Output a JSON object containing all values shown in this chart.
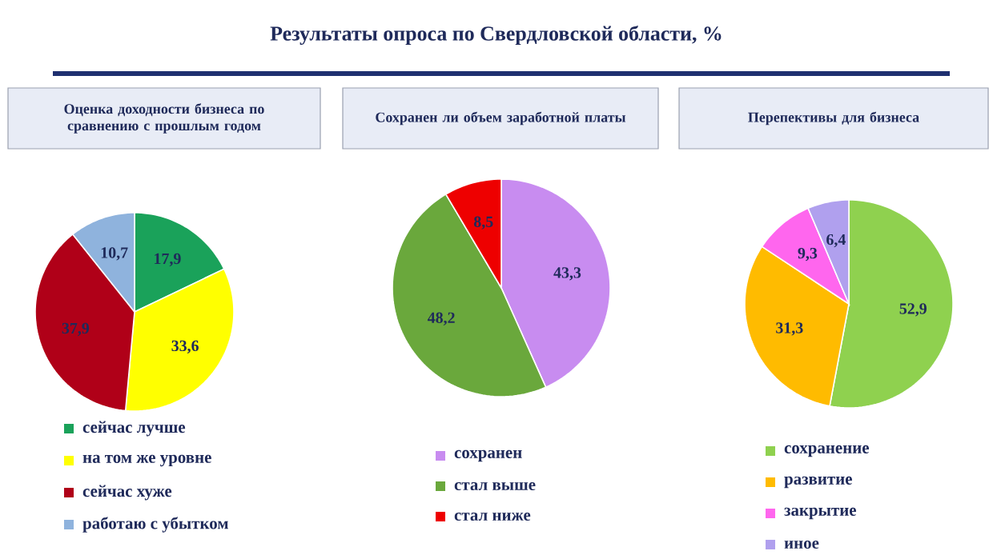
{
  "chart_data": [
    {
      "type": "pie",
      "subtitle": "Оценка доходности бизнеса по сравнению с прошлым годом",
      "categories": [
        "сейчас лучше",
        "на том же уровне",
        "сейчас хуже",
        "работаю с убытком"
      ],
      "values": [
        17.9,
        33.6,
        37.9,
        10.7
      ],
      "value_labels": [
        "17,9",
        "33,6",
        "37,9",
        "10,7"
      ],
      "colors": [
        "#1aa25a",
        "#ffff00",
        "#b00018",
        "#8fb3dd"
      ],
      "legend": "bottom"
    },
    {
      "type": "pie",
      "title": "Результаты опроса по Свердловской области, %",
      "subtitle": "Сохранен ли объем заработной платы",
      "categories": [
        "сохранен",
        "стал выше",
        "стал ниже"
      ],
      "values": [
        43.3,
        48.2,
        8.5
      ],
      "value_labels": [
        "43,3",
        "48,2",
        "8,5"
      ],
      "colors": [
        "#c88cf0",
        "#6aa83c",
        "#ee0000"
      ],
      "legend": "bottom"
    },
    {
      "type": "pie",
      "subtitle": "Перепективы для бизнеса",
      "categories": [
        "сохранение",
        "развитие",
        "закрытие",
        "иное"
      ],
      "values": [
        52.9,
        31.3,
        9.3,
        6.4
      ],
      "value_labels": [
        "52,9",
        "31,3",
        "9,3",
        "6,4"
      ],
      "colors": [
        "#8fd14f",
        "#ffbb00",
        "#ff66ee",
        "#b0a0ee"
      ],
      "legend": "bottom"
    }
  ]
}
